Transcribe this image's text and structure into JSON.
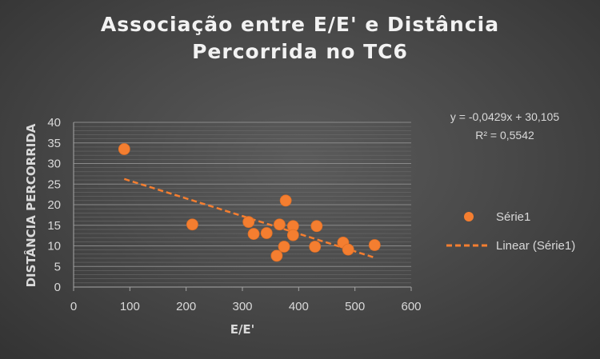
{
  "chart_data": {
    "type": "scatter",
    "title_lines": [
      "Associação entre E/E' e Distância",
      "Percorrida no TC6"
    ],
    "xlabel": "E/E'",
    "ylabel": "DISTÂNCIA PERCORRIDA",
    "xlim": [
      0,
      600
    ],
    "ylim": [
      0,
      40
    ],
    "xticks": [
      0,
      100,
      200,
      300,
      400,
      500,
      600
    ],
    "yticks": [
      0,
      5,
      10,
      15,
      20,
      25,
      30,
      35,
      40
    ],
    "grid": true,
    "marker_color": "#f47e30",
    "trendline_color": "#f47e30",
    "series": [
      {
        "name": "Série1",
        "points": [
          {
            "x": 90,
            "y": 33.5
          },
          {
            "x": 211,
            "y": 15.2
          },
          {
            "x": 311,
            "y": 15.8
          },
          {
            "x": 320,
            "y": 12.9
          },
          {
            "x": 343,
            "y": 13.1
          },
          {
            "x": 361,
            "y": 7.6
          },
          {
            "x": 366,
            "y": 15.2
          },
          {
            "x": 374,
            "y": 9.8
          },
          {
            "x": 377,
            "y": 21.0
          },
          {
            "x": 390,
            "y": 14.8
          },
          {
            "x": 390,
            "y": 12.6
          },
          {
            "x": 429,
            "y": 9.8
          },
          {
            "x": 432,
            "y": 14.8
          },
          {
            "x": 479,
            "y": 10.8
          },
          {
            "x": 488,
            "y": 9.1
          },
          {
            "x": 535,
            "y": 10.2
          }
        ]
      }
    ],
    "trendline": {
      "name": "Linear (Série1)",
      "slope": -0.0429,
      "intercept": 30.105,
      "x_range": [
        90,
        535
      ],
      "equation": "y = -0,0429x + 30,105",
      "r_squared": "R² = 0,5542"
    },
    "legend_position": "right"
  }
}
